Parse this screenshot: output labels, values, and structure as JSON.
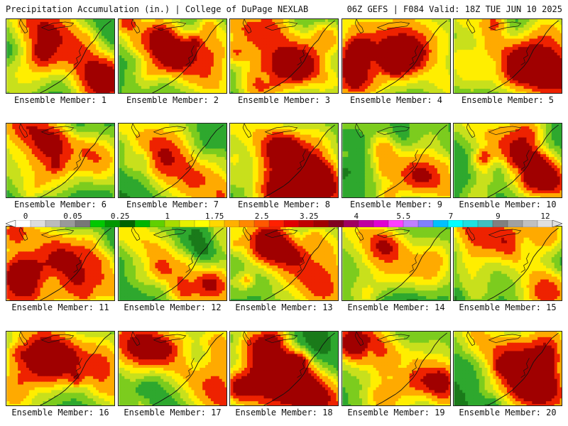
{
  "header": {
    "title": "Precipitation Accumulation (in.) | College of DuPage NEXLAB",
    "run_info": "06Z GEFS | F084 Valid: 18Z TUE JUN 10 2025"
  },
  "colorbar": {
    "labels": [
      "0",
      "0.05",
      "0.25",
      "1",
      "1.75",
      "2.5",
      "3.25",
      "4",
      "5.5",
      "7",
      "9",
      "12"
    ],
    "colors": [
      "#ffffff",
      "#dddddd",
      "#bbbbbb",
      "#999999",
      "#777777",
      "#00c800",
      "#009600",
      "#006400",
      "#00b400",
      "#60d000",
      "#a8dc00",
      "#e8f000",
      "#ffff00",
      "#ffd800",
      "#ffb000",
      "#ff8800",
      "#ff5800",
      "#ff2000",
      "#e00000",
      "#c00000",
      "#a00000",
      "#800020",
      "#a00060",
      "#c000a0",
      "#e000d0",
      "#ff40ff",
      "#c080ff",
      "#8080ff",
      "#00c0ff",
      "#00ffff",
      "#20e0e0",
      "#40c0c0",
      "#808080",
      "#a0a0a0",
      "#c0c0c0",
      "#e0e0e0"
    ]
  },
  "panels": [
    {
      "label": "Ensemble Member: 1",
      "seed": 1
    },
    {
      "label": "Ensemble Member: 2",
      "seed": 2
    },
    {
      "label": "Ensemble Member: 3",
      "seed": 3
    },
    {
      "label": "Ensemble Member: 4",
      "seed": 4
    },
    {
      "label": "Ensemble Member: 5",
      "seed": 5
    },
    {
      "label": "Ensemble Member: 6",
      "seed": 6
    },
    {
      "label": "Ensemble Member: 7",
      "seed": 7
    },
    {
      "label": "Ensemble Member: 8",
      "seed": 8
    },
    {
      "label": "Ensemble Member: 9",
      "seed": 9
    },
    {
      "label": "Ensemble Member: 10",
      "seed": 10
    },
    {
      "label": "Ensemble Member: 11",
      "seed": 11
    },
    {
      "label": "Ensemble Member: 12",
      "seed": 12
    },
    {
      "label": "Ensemble Member: 13",
      "seed": 13
    },
    {
      "label": "Ensemble Member: 14",
      "seed": 14
    },
    {
      "label": "Ensemble Member: 15",
      "seed": 15
    },
    {
      "label": "Ensemble Member: 16",
      "seed": 16
    },
    {
      "label": "Ensemble Member: 17",
      "seed": 17
    },
    {
      "label": "Ensemble Member: 18",
      "seed": 18
    },
    {
      "label": "Ensemble Member: 19",
      "seed": 19
    },
    {
      "label": "Ensemble Member: 20",
      "seed": 20
    }
  ],
  "map_colors": {
    "dark_green": "#1a7a1a",
    "green": "#2ea82e",
    "light_green": "#7ccc1e",
    "yellow_green": "#c8e01c",
    "yellow": "#ffee00",
    "orange": "#ffaa00",
    "red": "#ee2200",
    "dark_red": "#a00000",
    "gray": "#9a9a9a"
  }
}
